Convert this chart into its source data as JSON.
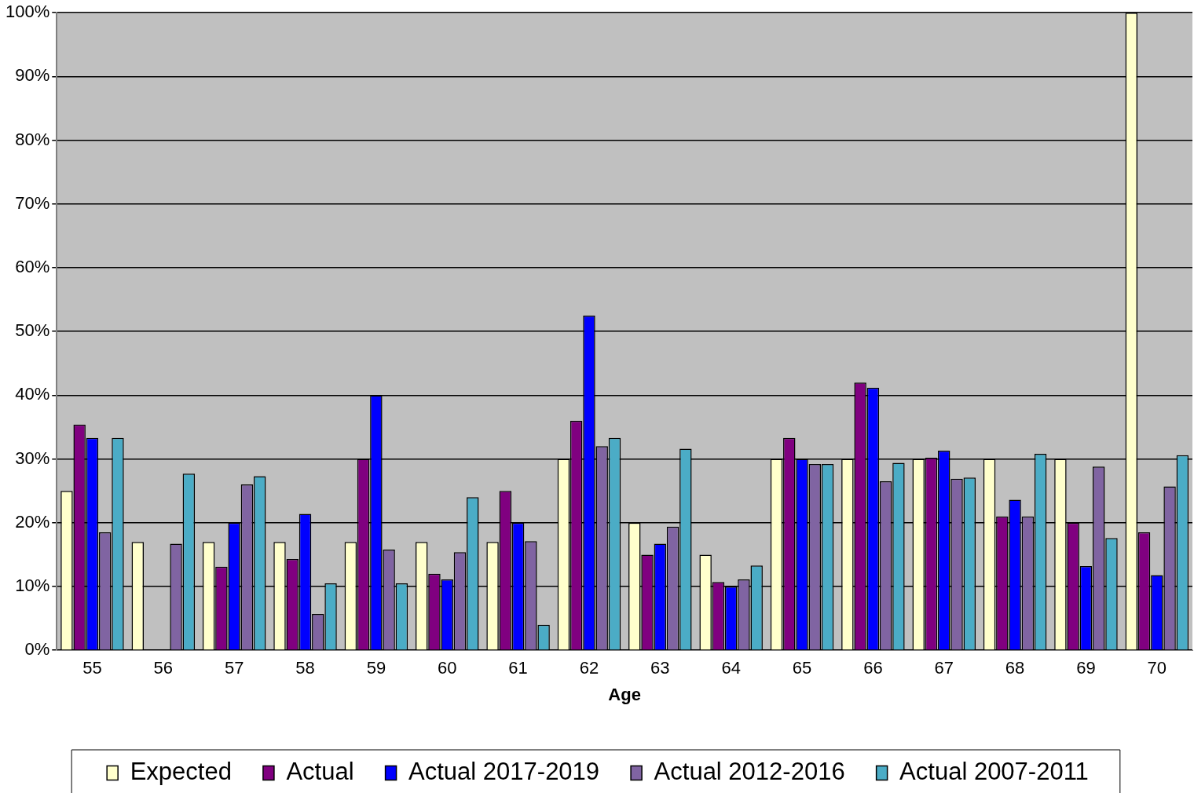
{
  "chart_data": {
    "type": "bar",
    "xlabel": "Age",
    "categories": [
      "55",
      "56",
      "57",
      "58",
      "59",
      "60",
      "61",
      "62",
      "63",
      "64",
      "65",
      "66",
      "67",
      "68",
      "69",
      "70"
    ],
    "series": [
      {
        "name": "Expected",
        "color": "#ffffcc",
        "values": [
          25,
          17,
          17,
          17,
          17,
          17,
          17,
          30,
          20,
          15,
          30,
          30,
          30,
          30,
          30,
          100
        ]
      },
      {
        "name": "Actual",
        "color": "#800080",
        "values": [
          35.4,
          0,
          13.1,
          14.3,
          30,
          12,
          25,
          36,
          15,
          10.7,
          33.3,
          42,
          30.2,
          21,
          20,
          18.5
        ]
      },
      {
        "name": "Actual 2017-2019",
        "color": "#0000ff",
        "values": [
          33.3,
          0,
          20,
          21.4,
          40,
          11.1,
          20,
          52.5,
          16.7,
          10,
          30,
          41.2,
          31.3,
          23.6,
          13.2,
          11.8
        ]
      },
      {
        "name": "Actual 2012-2016",
        "color": "#8064a2",
        "values": [
          18.5,
          16.7,
          26,
          5.7,
          15.8,
          15.4,
          17.1,
          32,
          19.4,
          11.1,
          29.2,
          26.5,
          26.9,
          21,
          28.8,
          25.7
        ]
      },
      {
        "name": "Actual 2007-2011",
        "color": "#4bacc6",
        "values": [
          33.3,
          27.7,
          27.3,
          10.5,
          10.5,
          24,
          4,
          33.3,
          31.6,
          13.3,
          29.2,
          29.4,
          27.1,
          30.8,
          17.6,
          30.6
        ]
      }
    ],
    "ylim": [
      0,
      100
    ],
    "yticks": [
      {
        "value": 0,
        "label": "0%"
      },
      {
        "value": 10,
        "label": "10%"
      },
      {
        "value": 20,
        "label": "20%"
      },
      {
        "value": 30,
        "label": "30%"
      },
      {
        "value": 40,
        "label": "40%"
      },
      {
        "value": 50,
        "label": "50%"
      },
      {
        "value": 60,
        "label": "60%"
      },
      {
        "value": 70,
        "label": "70%"
      },
      {
        "value": 80,
        "label": "80%"
      },
      {
        "value": 90,
        "label": "90%"
      },
      {
        "value": 100,
        "label": "100%"
      }
    ],
    "grid": "y",
    "legend": "bottom"
  }
}
